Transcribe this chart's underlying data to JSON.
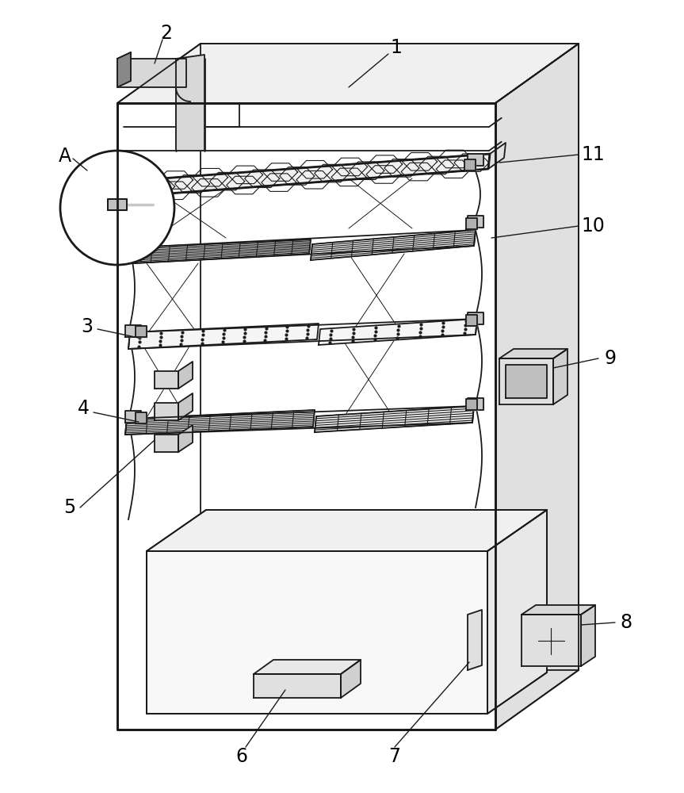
{
  "bg_color": "#ffffff",
  "line_color": "#1a1a1a",
  "lw": 1.3,
  "lw_thick": 2.0,
  "lw_thin": 0.7,
  "label_fs": 17,
  "gray_light": "#f0f0f0",
  "gray_mid": "#e0e0e0",
  "gray_dark": "#c8c8c8",
  "white": "#ffffff"
}
